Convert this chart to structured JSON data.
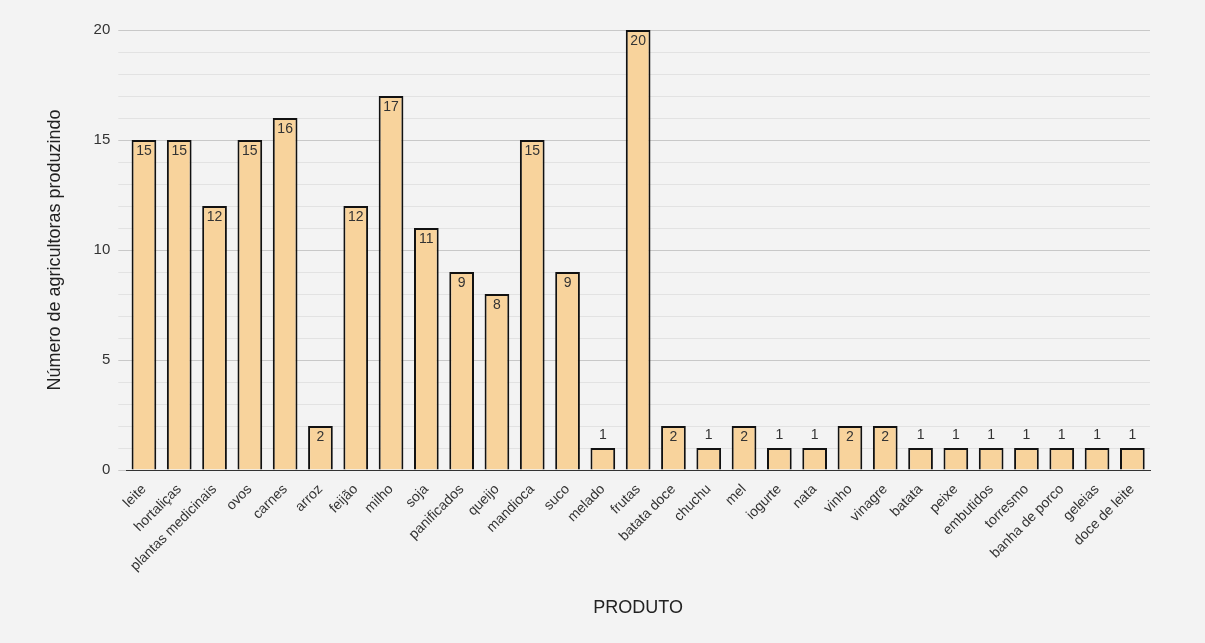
{
  "chart_data": {
    "type": "bar",
    "xlabel": "PRODUTO",
    "ylabel": "Número de agricultoras produzindo",
    "categories": [
      "leite",
      "hortaliças",
      "plantas medicinais",
      "ovos",
      "carnes",
      "arroz",
      "feijão",
      "milho",
      "soja",
      "panificados",
      "queijo",
      "mandioca",
      "suco",
      "melado",
      "frutas",
      "batata doce",
      "chuchu",
      "mel",
      "iogurte",
      "nata",
      "vinho",
      "vinagre",
      "batata",
      "peixe",
      "embutidos",
      "torresmo",
      "banha de porco",
      "geleias",
      "doce de leite"
    ],
    "values": [
      15,
      15,
      12,
      15,
      16,
      2,
      12,
      17,
      11,
      9,
      8,
      15,
      9,
      1,
      20,
      2,
      1,
      2,
      1,
      1,
      2,
      2,
      1,
      1,
      1,
      1,
      1,
      1,
      1
    ],
    "color": "#f8d39c",
    "ylim": [
      0,
      20
    ],
    "yticks": [
      0,
      {
        "value": 1,
        "label": null
      },
      {
        "value": 2,
        "label": null
      },
      {
        "value": 3,
        "label": null
      },
      {
        "value": 4,
        "label": null
      },
      5,
      {
        "value": 6,
        "label": null
      },
      {
        "value": 7,
        "label": null
      },
      {
        "value": 8,
        "label": null
      },
      {
        "value": 9,
        "label": null
      },
      10,
      {
        "value": 11,
        "label": null
      },
      {
        "value": 12,
        "label": null
      },
      {
        "value": 13,
        "label": null
      },
      {
        "value": 14,
        "label": null
      },
      15,
      {
        "value": 16,
        "label": null
      },
      {
        "value": 17,
        "label": null
      },
      {
        "value": 18,
        "label": null
      },
      {
        "value": 19,
        "label": null
      },
      20
    ],
    "grid": true,
    "data_labels": true
  }
}
